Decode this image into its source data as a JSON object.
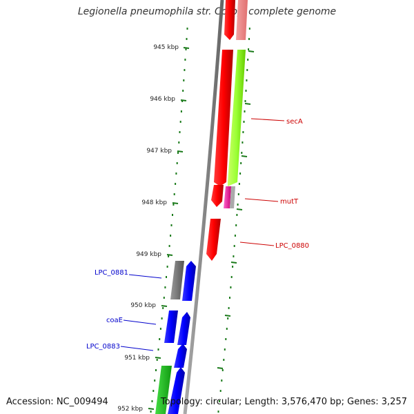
{
  "title": "Legionella pneumophila str. Corby, complete genome",
  "footer": {
    "accession": "Accession: NC_009494",
    "summary": "Topology: circular; Length: 3,576,470 bp; Genes: 3,257"
  },
  "scale_ticks": [
    {
      "label": "945 kbp"
    },
    {
      "label": "946 kbp"
    },
    {
      "label": "947 kbp"
    },
    {
      "label": "948 kbp"
    },
    {
      "label": "949 kbp"
    },
    {
      "label": "950 kbp"
    },
    {
      "label": "951 kbp"
    },
    {
      "label": "952 kbp"
    }
  ],
  "gene_labels": [
    {
      "text": "secA",
      "color": "#cc0000"
    },
    {
      "text": "mutT",
      "color": "#cc0000"
    },
    {
      "text": "LPC_0880",
      "color": "#cc0000"
    },
    {
      "text": "LPC_0881",
      "color": "#0000cc"
    },
    {
      "text": "coaE",
      "color": "#0000cc"
    },
    {
      "text": "LPC_0883",
      "color": "#0000cc"
    }
  ],
  "colors": {
    "forward_genes": "#ff0000",
    "reverse_genes": "#0000ff",
    "backbone": "#888888",
    "tick_marks": "#1a7a1a",
    "gc_green": "#99ff33",
    "gc_pink": "#ff3399"
  }
}
